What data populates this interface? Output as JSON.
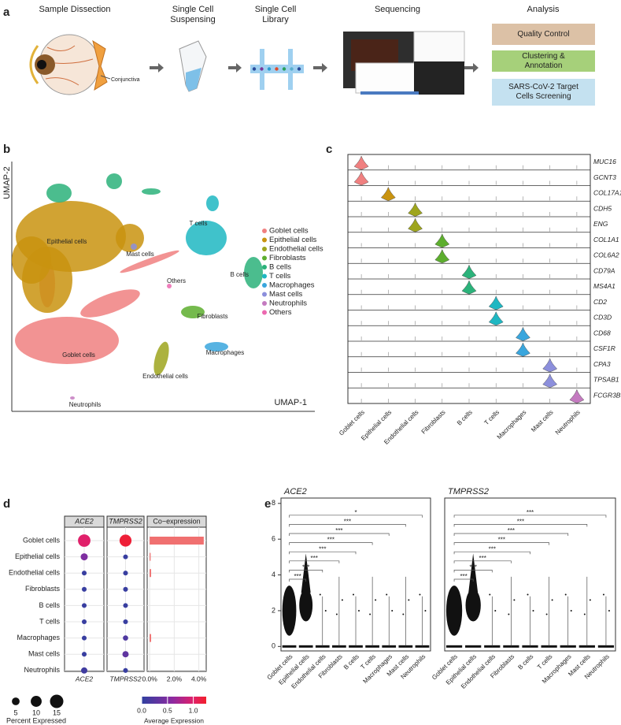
{
  "panel_labels": [
    "a",
    "b",
    "c",
    "d",
    "e"
  ],
  "workflow": {
    "steps": [
      "Sample Dissection",
      "Single Cell Suspensing",
      "Single Cell Library",
      "Sequencing",
      "Analysis"
    ],
    "conjunctiva_label": "Conjunctiva",
    "analysis_boxes": [
      {
        "label": "Quality Control",
        "color": "#dcc1a6"
      },
      {
        "label": "Clustering & Annotation",
        "color": "#a6d07a"
      },
      {
        "label": "SARS-CoV-2 Target Cells Screening",
        "color": "#c4e1f0"
      }
    ]
  },
  "umap": {
    "x_label": "UMAP-1",
    "y_label": "UMAP-2",
    "clusters": [
      {
        "name": "Goblet cells",
        "color": "#f08080"
      },
      {
        "name": "Epithelial cells",
        "color": "#c9930f"
      },
      {
        "name": "Endothelial cells",
        "color": "#9ea51d"
      },
      {
        "name": "Fibroblasts",
        "color": "#5dae2e"
      },
      {
        "name": "B cells",
        "color": "#2bb27a"
      },
      {
        "name": "T cells",
        "color": "#1fb7c2"
      },
      {
        "name": "Macrophages",
        "color": "#3aa6dd"
      },
      {
        "name": "Mast cells",
        "color": "#8c8fdc"
      },
      {
        "name": "Neutrophils",
        "color": "#c47ac0"
      },
      {
        "name": "Others",
        "color": "#ec69b0"
      }
    ]
  },
  "violin": {
    "genes": [
      "MUC16",
      "GCNT3",
      "COL17A1",
      "CDH5",
      "ENG",
      "COL1A1",
      "COL6A2",
      "CD79A",
      "MS4A1",
      "CD2",
      "CD3D",
      "CD68",
      "CSF1R",
      "CPA3",
      "TPSAB1",
      "FCGR3B"
    ]
  },
  "chart_data": [
    {
      "type": "dot",
      "series": [
        {
          "name": "ACE2",
          "percent_expressed": [
            13,
            4.2,
            1.9,
            1.9,
            1.9,
            1.9,
            1.9,
            1.9,
            3.3
          ],
          "average_expression": [
            1.0,
            0.5,
            0.05,
            0.05,
            0.05,
            0.05,
            0.05,
            0.05,
            0.1
          ]
        },
        {
          "name": "TMPRSS2",
          "percent_expressed": [
            12,
            1.9,
            1.9,
            1.9,
            1.9,
            1.9,
            2.3,
            3.3,
            1.9
          ],
          "average_expression": [
            1.2,
            0.05,
            0.05,
            0.05,
            0.05,
            0.05,
            0.2,
            0.3,
            0.05
          ]
        }
      ],
      "coexpression": {
        "title": "Co−expression",
        "color": "#f07070",
        "values": [
          4.4,
          0.08,
          0.12,
          0,
          0,
          0,
          0.12,
          0,
          0
        ],
        "xlim": [
          -0.2,
          4.6
        ],
        "xticks": [
          {
            "value": 0,
            "label": "0.0%"
          },
          {
            "value": 2,
            "label": "2.0%"
          },
          {
            "value": 4,
            "label": "4.0%"
          }
        ]
      },
      "size_legend": {
        "title": "Percent Expressed",
        "values": [
          5,
          10,
          15
        ]
      },
      "color_legend": {
        "title": "Average Expression",
        "lim": [
          0,
          1.25
        ],
        "ticks": [
          {
            "value": 0,
            "label": "0.0"
          },
          {
            "value": 0.5,
            "label": "0.5"
          },
          {
            "value": 1,
            "label": "1.0"
          }
        ]
      }
    },
    {
      "type": "jitter",
      "panels": [
        {
          "title": "ACE2",
          "significance": [
            "***",
            "***",
            "***",
            "***",
            "***",
            "***",
            "***",
            "*"
          ]
        },
        {
          "title": "TMPRSS2",
          "significance": [
            "***",
            "***",
            "***",
            "***",
            "***",
            "***",
            "***",
            "***"
          ]
        }
      ],
      "ylim": [
        -0.25,
        8.3
      ],
      "yticks": [
        0,
        2,
        4,
        6,
        8
      ]
    }
  ]
}
